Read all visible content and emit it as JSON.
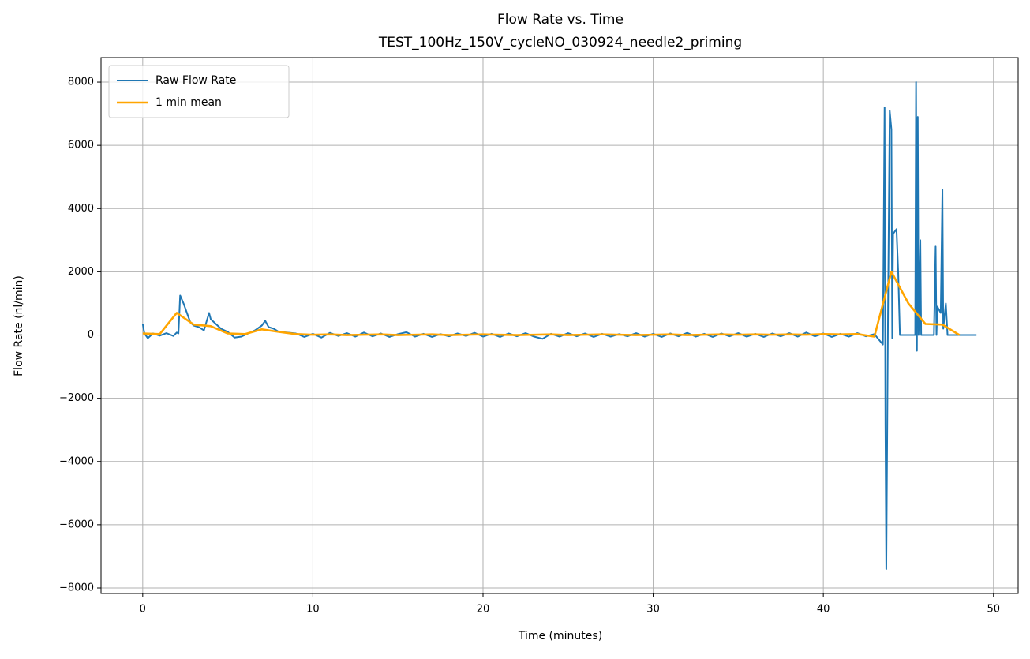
{
  "chart_data": {
    "type": "line",
    "title": "Flow Rate vs. Time",
    "subtitle": "TEST_100Hz_150V_cycleNO_030924_needle2_priming",
    "x_label": "Time (minutes)",
    "y_label": "Flow Rate (nl/min)",
    "xlim": [
      -2.45,
      51.45
    ],
    "ylim": [
      -8175,
      8775
    ],
    "xticks": [
      0,
      10,
      20,
      30,
      40,
      50
    ],
    "yticks": [
      {
        "value": -8000,
        "label": "−8000"
      },
      {
        "value": -6000,
        "label": "−6000"
      },
      {
        "value": -4000,
        "label": "−4000"
      },
      {
        "value": -2000,
        "label": "−2000"
      },
      0,
      2000,
      4000,
      6000,
      8000
    ],
    "grid": true,
    "legend": "upper left",
    "series": [
      {
        "name": "Raw Flow Rate",
        "color": "#1f77b4",
        "x": [
          0,
          0.1,
          0.3,
          0.6,
          1.0,
          1.4,
          1.8,
          2.0,
          2.1,
          2.2,
          2.4,
          2.6,
          2.8,
          3.0,
          3.3,
          3.6,
          3.9,
          4.0,
          4.3,
          4.6,
          5.0,
          5.4,
          5.8,
          6.2,
          6.6,
          7.0,
          7.2,
          7.4,
          7.7,
          8.0,
          8.5,
          9,
          9.5,
          10,
          10.5,
          11,
          11.5,
          12,
          12.5,
          13,
          13.5,
          14,
          14.5,
          15,
          15.5,
          16,
          16.5,
          17,
          17.5,
          18,
          18.5,
          19,
          19.5,
          20,
          20.5,
          21,
          21.5,
          22,
          22.5,
          23,
          23.5,
          24,
          24.5,
          25,
          25.5,
          26,
          26.5,
          27,
          27.5,
          28,
          28.5,
          29,
          29.5,
          30,
          30.5,
          31,
          31.5,
          32,
          32.5,
          33,
          33.5,
          34,
          34.5,
          35,
          35.5,
          36,
          36.5,
          37,
          37.5,
          38,
          38.5,
          39,
          39.5,
          40,
          40.5,
          41,
          41.5,
          42,
          42.5,
          43,
          43.5,
          43.6,
          43.65,
          43.7,
          43.8,
          43.9,
          44.0,
          44.05,
          44.1,
          44.3,
          44.4,
          44.5,
          45.0,
          45.4,
          45.45,
          45.5,
          45.55,
          45.6,
          45.7,
          45.75,
          46.5,
          46.6,
          46.65,
          46.7,
          46.9,
          47.0,
          47.05,
          47.2,
          47.3,
          49.0
        ],
        "values": [
          350,
          50,
          -100,
          50,
          -20,
          60,
          -30,
          80,
          50,
          1250,
          1000,
          700,
          400,
          300,
          250,
          150,
          700,
          500,
          350,
          200,
          100,
          -80,
          -50,
          50,
          150,
          300,
          450,
          250,
          200,
          100,
          80,
          50,
          -60,
          40,
          -80,
          70,
          -30,
          60,
          -50,
          80,
          -40,
          50,
          -60,
          30,
          90,
          -50,
          40,
          -60,
          30,
          -40,
          50,
          -30,
          70,
          -50,
          40,
          -60,
          50,
          -40,
          60,
          -50,
          -120,
          40,
          -50,
          60,
          -40,
          50,
          -60,
          40,
          -50,
          30,
          -40,
          60,
          -50,
          40,
          -60,
          50,
          -40,
          70,
          -50,
          40,
          -60,
          50,
          -40,
          60,
          -50,
          40,
          -60,
          50,
          -40,
          60,
          -50,
          80,
          -40,
          50,
          -60,
          40,
          -50,
          60,
          -40,
          30,
          -300,
          7200,
          -2800,
          -7400,
          600,
          7100,
          6500,
          -100,
          3200,
          3350,
          2000,
          0,
          0,
          0,
          8000,
          -500,
          6900,
          0,
          3000,
          0,
          0,
          2800,
          0,
          900,
          700,
          4600,
          200,
          1000,
          0,
          0
        ]
      },
      {
        "name": "1 min mean",
        "color": "#ffa500",
        "x": [
          0,
          1,
          2,
          3,
          4,
          5,
          6,
          7,
          8,
          9,
          10,
          11,
          12,
          13,
          14,
          15,
          16,
          17,
          18,
          19,
          20,
          21,
          22,
          23,
          24,
          25,
          26,
          27,
          28,
          29,
          30,
          31,
          32,
          33,
          34,
          35,
          36,
          37,
          38,
          39,
          40,
          41,
          42,
          43,
          44,
          45,
          46,
          47,
          48
        ],
        "values": [
          50,
          30,
          700,
          330,
          280,
          50,
          30,
          180,
          100,
          30,
          10,
          20,
          0,
          10,
          20,
          0,
          10,
          20,
          0,
          10,
          20,
          10,
          0,
          10,
          20,
          0,
          10,
          20,
          10,
          0,
          10,
          20,
          0,
          10,
          20,
          10,
          20,
          10,
          20,
          10,
          30,
          20,
          30,
          -50,
          2000,
          1000,
          350,
          330,
          0
        ]
      }
    ]
  }
}
